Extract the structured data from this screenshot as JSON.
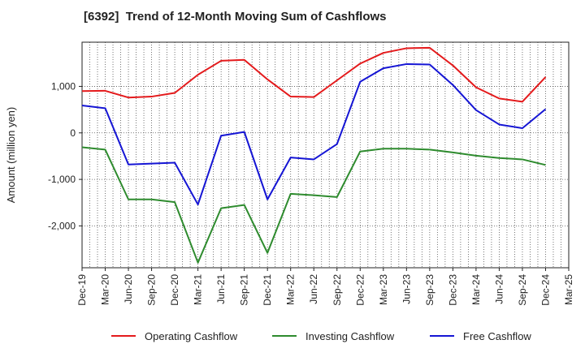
{
  "chart_data": {
    "type": "line",
    "title": "[6392]  Trend of 12-Month Moving Sum of Cashflows",
    "ylabel": "Amount (million yen)",
    "xlabel": "",
    "ylim": [
      -2900,
      1950
    ],
    "yticks": [
      1000,
      0,
      -1000,
      -2000
    ],
    "ytick_labels": [
      "1,000",
      "0",
      "-1,000",
      "-2,000"
    ],
    "x": [
      "Dec-19",
      "Mar-20",
      "Jun-20",
      "Sep-20",
      "Dec-20",
      "Mar-21",
      "Jun-21",
      "Sep-21",
      "Dec-21",
      "Mar-22",
      "Jun-22",
      "Sep-22",
      "Dec-22",
      "Mar-23",
      "Jun-23",
      "Sep-23",
      "Dec-23",
      "Mar-24",
      "Jun-24",
      "Sep-24",
      "Dec-24",
      "Mar-25"
    ],
    "grid": true,
    "legend_position": "bottom",
    "series": [
      {
        "name": "Operating Cashflow",
        "color": "#e41a1c",
        "values": [
          900,
          905,
          760,
          780,
          860,
          1250,
          1550,
          1570,
          1150,
          780,
          770,
          1130,
          1490,
          1720,
          1820,
          1830,
          1450,
          980,
          740,
          670,
          1200,
          null
        ]
      },
      {
        "name": "Investing Cashflow",
        "color": "#2e8b2e",
        "values": [
          -310,
          -360,
          -1430,
          -1430,
          -1490,
          -2790,
          -1620,
          -1550,
          -2580,
          -1310,
          -1340,
          -1380,
          -400,
          -340,
          -340,
          -360,
          -420,
          -490,
          -540,
          -570,
          -690,
          null
        ]
      },
      {
        "name": "Free Cashflow",
        "color": "#1515d4",
        "values": [
          590,
          530,
          -680,
          -660,
          -640,
          -1540,
          -60,
          20,
          -1430,
          -530,
          -570,
          -240,
          1100,
          1390,
          1480,
          1470,
          1030,
          490,
          180,
          100,
          510,
          null
        ]
      }
    ]
  }
}
